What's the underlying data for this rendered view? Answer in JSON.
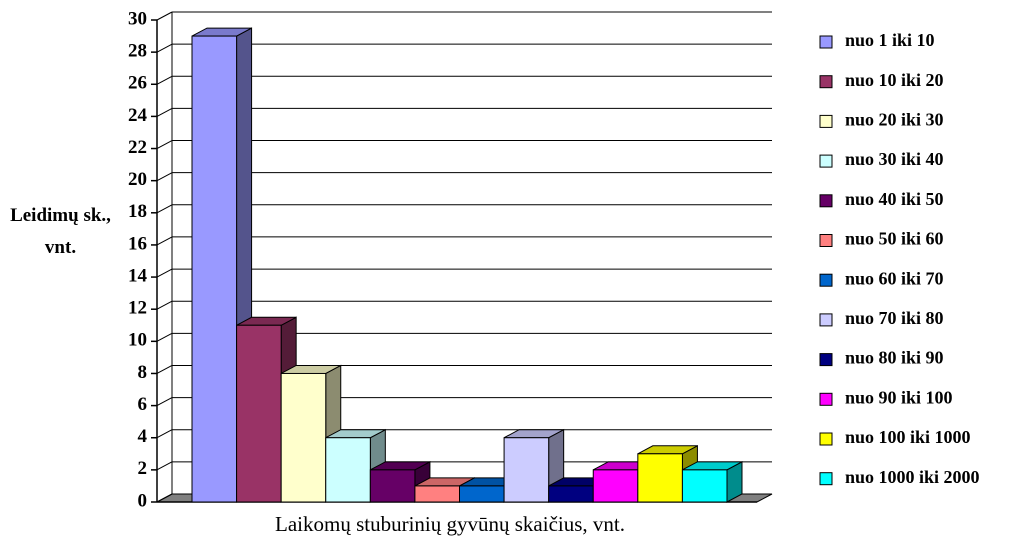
{
  "chart_data": {
    "type": "bar3d",
    "ylabel": "Leidimų sk., vnt.",
    "xlabel": "Laikomų stuburinių gyvūnų skaičius, vnt.",
    "ylim": [
      0,
      30
    ],
    "yticks": [
      0,
      2,
      4,
      6,
      8,
      10,
      12,
      14,
      16,
      18,
      20,
      22,
      24,
      26,
      28,
      30
    ],
    "grid": true,
    "legend": "right",
    "series": [
      {
        "name": "nuo 1 iki 10",
        "color": "#9999ff",
        "values": [
          29
        ]
      },
      {
        "name": "nuo 10 iki 20",
        "color": "#993366",
        "values": [
          11
        ]
      },
      {
        "name": "nuo 20 iki 30",
        "color": "#ffffcc",
        "values": [
          8
        ]
      },
      {
        "name": "nuo 30 iki 40",
        "color": "#ccffff",
        "values": [
          4
        ]
      },
      {
        "name": "nuo 40 iki 50",
        "color": "#660066",
        "values": [
          2
        ]
      },
      {
        "name": "nuo 50 iki 60",
        "color": "#ff8080",
        "values": [
          1
        ]
      },
      {
        "name": "nuo 60 iki 70",
        "color": "#0066cc",
        "values": [
          1
        ]
      },
      {
        "name": "nuo 70 iki 80",
        "color": "#ccccff",
        "values": [
          4
        ]
      },
      {
        "name": "nuo 80 iki 90",
        "color": "#000080",
        "values": [
          1
        ]
      },
      {
        "name": "nuo 90 iki 100",
        "color": "#ff00ff",
        "values": [
          2
        ]
      },
      {
        "name": "nuo 100 iki 1000",
        "color": "#ffff00",
        "values": [
          3
        ]
      },
      {
        "name": "nuo 1000 iki 2000",
        "color": "#00ffff",
        "values": [
          2
        ]
      }
    ]
  }
}
